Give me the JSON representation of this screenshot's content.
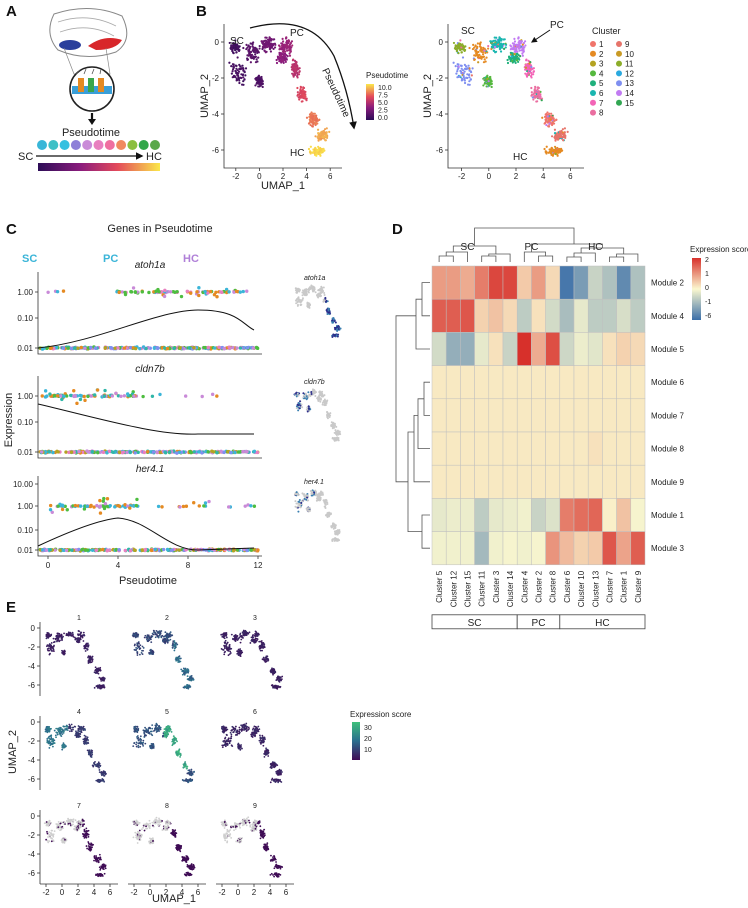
{
  "panels": {
    "a": "A",
    "b": "B",
    "c": "C",
    "d": "D",
    "e": "E"
  },
  "panel_a": {
    "pseudotime": "Pseudotime",
    "sc": "SC",
    "hc": "HC",
    "dot_colors": [
      "#38b6d8",
      "#3ec0c6",
      "#35c0e0",
      "#8e7fd8",
      "#c98ad8",
      "#e87fbf",
      "#ef6fa0",
      "#f08a5f",
      "#8bbf3f",
      "#32a64a",
      "#5aa84a"
    ]
  },
  "panel_b": {
    "left": {
      "sc": "SC",
      "pc": "PC",
      "hc": "HC",
      "arrow": "Pseudotime",
      "xlabel": "UMAP_1",
      "ylabel": "UMAP_2",
      "xticks": [
        "-2",
        "0",
        "2",
        "4",
        "6"
      ],
      "yticks": [
        "0",
        "-2",
        "-4",
        "-6"
      ],
      "legend_title": "Pseudotime",
      "legend_ticks": [
        "10.0",
        "7.5",
        "5.0",
        "2.5",
        "0.0"
      ]
    },
    "right": {
      "sc": "SC",
      "pc": "PC",
      "hc": "HC",
      "xticks": [
        "-2",
        "0",
        "2",
        "4",
        "6"
      ],
      "yticks": [
        "0",
        "-2",
        "-4",
        "-6"
      ],
      "ylabel": "UMAP_2",
      "legend_title": "Cluster",
      "clusters": [
        {
          "id": "1",
          "color": "#f0746a"
        },
        {
          "id": "2",
          "color": "#e58a22"
        },
        {
          "id": "3",
          "color": "#b4a321"
        },
        {
          "id": "4",
          "color": "#55b83e"
        },
        {
          "id": "5",
          "color": "#1fb07c"
        },
        {
          "id": "6",
          "color": "#1ab6b0"
        },
        {
          "id": "7",
          "color": "#f364b7"
        },
        {
          "id": "8",
          "color": "#ea6ea0"
        },
        {
          "id": "9",
          "color": "#e6746a"
        },
        {
          "id": "10",
          "color": "#c99a25"
        },
        {
          "id": "11",
          "color": "#8cad2a"
        },
        {
          "id": "12",
          "color": "#2aa9df"
        },
        {
          "id": "13",
          "color": "#7f8ff0"
        },
        {
          "id": "14",
          "color": "#c17bf2"
        },
        {
          "id": "15",
          "color": "#32a652"
        }
      ]
    }
  },
  "panel_c": {
    "title": "Genes in Pseudotime",
    "sc": "SC",
    "pc": "PC",
    "hc": "HC",
    "genes": [
      "atoh1a",
      "cldn7b",
      "her4.1"
    ],
    "yticks_1": [
      "1.00",
      "0.10",
      "0.01"
    ],
    "yticks_3": [
      "10.00",
      "1.00",
      "0.10",
      "0.01"
    ],
    "xticks": [
      "0",
      "4",
      "8",
      "12"
    ],
    "xlabel": "Pseudotime",
    "ylabel": "Expression"
  },
  "panel_d": {
    "chart_data": {
      "type": "heatmap",
      "columns": [
        "Cluster 5",
        "Cluster 12",
        "Cluster 15",
        "Cluster 11",
        "Cluster 3",
        "Cluster 14",
        "Cluster 4",
        "Cluster 2",
        "Cluster 8",
        "Cluster 6",
        "Cluster 10",
        "Cluster 13",
        "Cluster 7",
        "Cluster 1",
        "Cluster 9"
      ],
      "rows": [
        "Module 2",
        "Module 4",
        "Module 5",
        "Module 6",
        "Module 7",
        "Module 8",
        "Module 9",
        "Module 1",
        "Module 3"
      ],
      "values": [
        [
          1.2,
          1.2,
          1.0,
          1.6,
          2.3,
          2.3,
          0.6,
          1.2,
          0.4,
          -3.5,
          -2.5,
          -1.0,
          -1.5,
          -3.0,
          -1.5
        ],
        [
          2.0,
          2.0,
          2.1,
          0.5,
          0.7,
          0.4,
          -1.2,
          0.3,
          -0.8,
          -1.6,
          -0.4,
          -1.2,
          -1.2,
          -0.7,
          -1.2
        ],
        [
          -0.8,
          -2.0,
          -2.0,
          -0.4,
          0.3,
          -1.0,
          2.6,
          1.0,
          2.2,
          -0.9,
          -0.3,
          -0.5,
          0.3,
          0.5,
          0.4
        ],
        [
          0.2,
          0.2,
          0.2,
          0.2,
          0.2,
          0.2,
          0.2,
          0.2,
          0.2,
          0.2,
          0.2,
          0.2,
          0.2,
          0.2,
          0.2
        ],
        [
          0.2,
          0.2,
          0.2,
          0.2,
          0.2,
          0.2,
          0.2,
          0.2,
          0.2,
          0.2,
          0.2,
          0.2,
          0.2,
          0.2,
          0.2
        ],
        [
          0.2,
          0.2,
          0.2,
          0.2,
          0.2,
          0.2,
          0.2,
          0.2,
          0.2,
          0.2,
          0.2,
          0.3,
          0.2,
          0.2,
          0.2
        ],
        [
          0.2,
          0.2,
          0.2,
          0.2,
          0.2,
          0.2,
          0.2,
          0.2,
          0.2,
          0.2,
          0.2,
          0.2,
          0.2,
          0.2,
          0.2
        ],
        [
          -0.4,
          -0.3,
          -0.3,
          -1.2,
          -0.4,
          -0.3,
          -0.2,
          -1.0,
          -0.6,
          1.6,
          1.8,
          1.9,
          0.1,
          0.7,
          -0.1
        ],
        [
          -0.2,
          -0.2,
          -0.2,
          -1.7,
          -0.2,
          -0.1,
          -0.2,
          -0.1,
          1.3,
          0.8,
          0.5,
          0.6,
          2.1,
          1.1,
          2.0
        ]
      ],
      "legend_title": "Expression score",
      "legend_ticks": [
        "2",
        "1",
        "0",
        "-1",
        "-6"
      ],
      "groups": [
        {
          "label": "SC",
          "span": 6
        },
        {
          "label": "PC",
          "span": 3
        },
        {
          "label": "HC",
          "span": 6
        }
      ],
      "top_labels": [
        "SC",
        "PC",
        "HC"
      ]
    }
  },
  "panel_e": {
    "modules": [
      "1",
      "2",
      "3",
      "4",
      "5",
      "6",
      "7",
      "8",
      "9"
    ],
    "xlabel": "UMAP_1",
    "ylabel": "UMAP_2",
    "xticks": [
      "-2",
      "0",
      "2",
      "4",
      "6"
    ],
    "yticks": [
      "0",
      "-2",
      "-4",
      "-6"
    ],
    "legend_title": "Expression score",
    "legend_ticks": [
      "30",
      "20",
      "10"
    ]
  }
}
